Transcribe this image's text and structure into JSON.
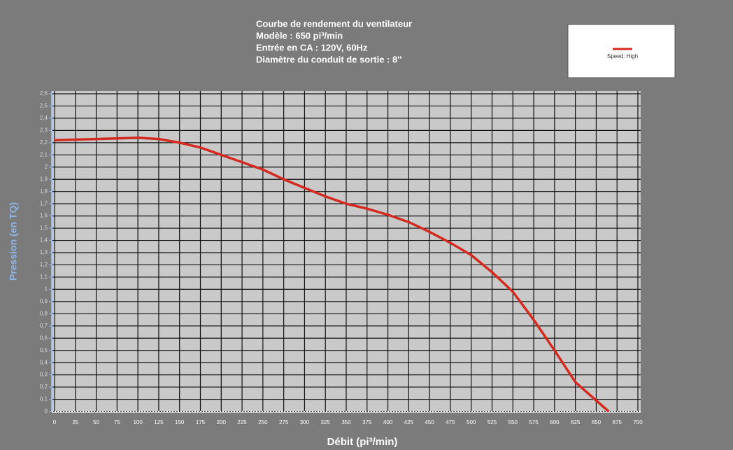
{
  "chart_data": {
    "type": "line",
    "title": "Courbe de rendement du ventilateur",
    "subtitle": [
      "Modèle : 650 pi³/min",
      "Entrée en CA : 120V, 60Hz",
      "Diamètre du conduit de sortie : 8''"
    ],
    "x_label": "Débit (pi³/min)",
    "y_label": "Pression (en TQ)",
    "x": [
      0,
      50,
      100,
      125,
      150,
      175,
      200,
      225,
      250,
      275,
      300,
      325,
      350,
      375,
      400,
      425,
      450,
      475,
      500,
      525,
      550,
      575,
      600,
      625,
      665
    ],
    "series": [
      {
        "name": "Speed: High",
        "color": "#d42a1f",
        "values": [
          2.22,
          2.23,
          2.24,
          2.23,
          2.2,
          2.16,
          2.1,
          2.04,
          1.98,
          1.9,
          1.83,
          1.76,
          1.7,
          1.66,
          1.61,
          1.55,
          1.47,
          1.38,
          1.28,
          1.14,
          0.98,
          0.75,
          0.5,
          0.24,
          0
        ]
      }
    ],
    "xlim": [
      0,
      700
    ],
    "xticks": [
      0,
      25,
      50,
      75,
      100,
      125,
      150,
      175,
      200,
      225,
      250,
      275,
      300,
      325,
      350,
      375,
      400,
      425,
      450,
      475,
      500,
      525,
      550,
      575,
      600,
      625,
      650,
      675,
      700
    ],
    "ylim": [
      0,
      2.6
    ],
    "yticks": [
      0,
      {
        "value": 0.1,
        "label": "0,1"
      },
      {
        "value": 0.2,
        "label": "0,2"
      },
      {
        "value": 0.3,
        "label": "0,3"
      },
      {
        "value": 0.4,
        "label": "0,4"
      },
      {
        "value": 0.5,
        "label": "0,5"
      },
      {
        "value": 0.6,
        "label": "0,6"
      },
      {
        "value": 0.7,
        "label": "0,7"
      },
      {
        "value": 0.8,
        "label": "0,8"
      },
      {
        "value": 0.9,
        "label": "0,9"
      },
      1,
      {
        "value": 1.1,
        "label": "1,1"
      },
      {
        "value": 1.2,
        "label": "1,2"
      },
      {
        "value": 1.3,
        "label": "1,3"
      },
      {
        "value": 1.4,
        "label": "1,4"
      },
      {
        "value": 1.5,
        "label": "1,5"
      },
      {
        "value": 1.6,
        "label": "1,6"
      },
      {
        "value": 1.7,
        "label": "1,7"
      },
      {
        "value": 1.8,
        "label": "1,8"
      },
      {
        "value": 1.9,
        "label": "1,9"
      },
      2,
      {
        "value": 2.1,
        "label": "2,1"
      },
      {
        "value": 2.2,
        "label": "2,2"
      },
      {
        "value": 2.3,
        "label": "2,3"
      },
      {
        "value": 2.4,
        "label": "2,4"
      },
      {
        "value": 2.5,
        "label": "2,5"
      },
      {
        "value": 2.6,
        "label": "2,6"
      }
    ],
    "grid": true,
    "legend": "top-right"
  }
}
